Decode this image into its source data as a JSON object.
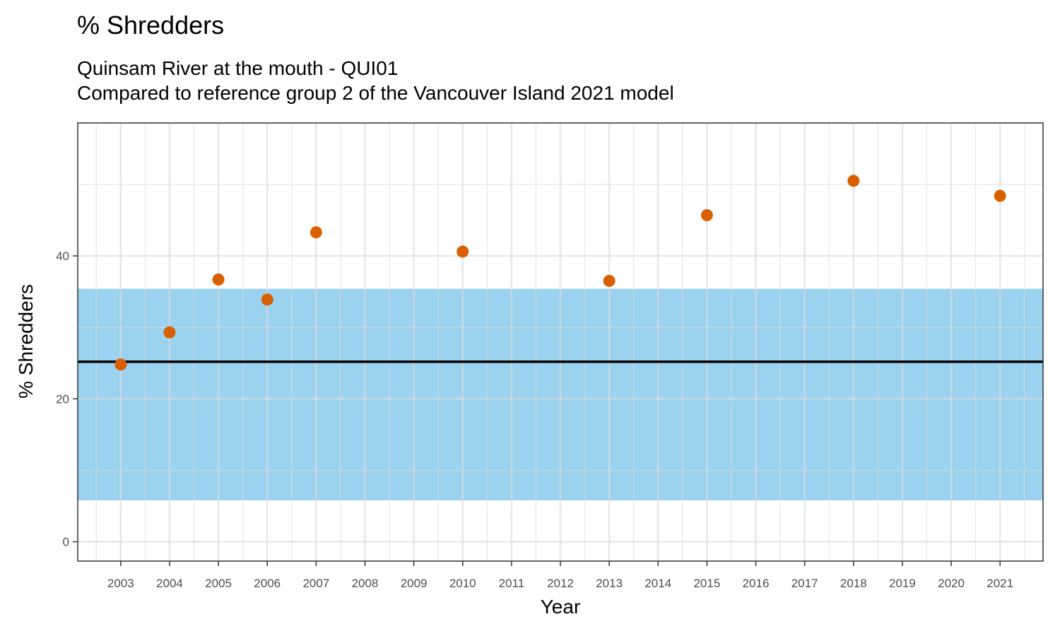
{
  "title": "% Shredders",
  "subtitle_line1": "Quinsam River at the mouth - QUI01",
  "subtitle_line2": "Compared to reference group 2 of the Vancouver Island 2021 model",
  "chart_data": {
    "type": "scatter",
    "xlabel": "Year",
    "ylabel": "% Shredders",
    "x_ticks": [
      2003,
      2004,
      2005,
      2006,
      2007,
      2008,
      2009,
      2010,
      2011,
      2012,
      2013,
      2014,
      2015,
      2016,
      2017,
      2018,
      2019,
      2020,
      2021
    ],
    "y_ticks": [
      0,
      20,
      40
    ],
    "xlim": [
      2002.12,
      2021.88
    ],
    "ylim": [
      -2.7,
      58.6
    ],
    "grid": true,
    "reference_band": {
      "low": 5.8,
      "high": 35.4,
      "color": "#9ad2f0"
    },
    "reference_line": {
      "value": 25.2,
      "color": "#000000"
    },
    "points": {
      "color": "#d95f02",
      "x": [
        2003,
        2004,
        2005,
        2006,
        2007,
        2010,
        2013,
        2015,
        2018,
        2021
      ],
      "y": [
        24.8,
        29.3,
        36.7,
        33.9,
        43.3,
        40.6,
        36.5,
        45.7,
        50.5,
        48.4
      ]
    }
  }
}
